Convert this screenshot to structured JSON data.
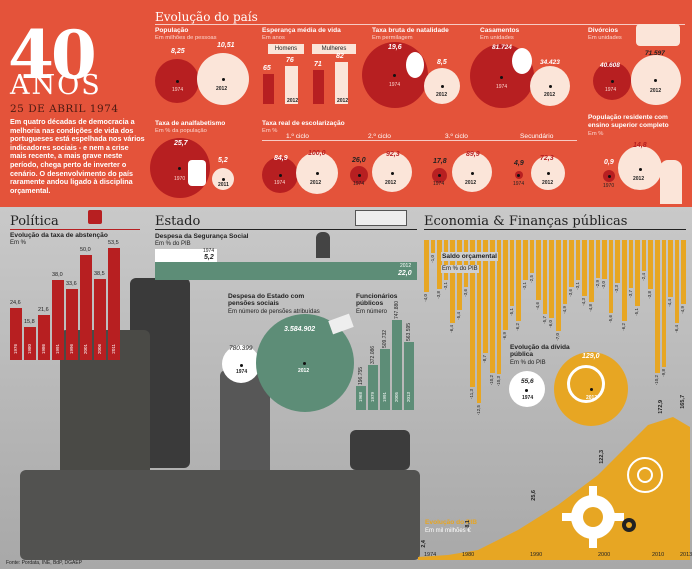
{
  "header": {
    "number": "40",
    "anos": "ANOS",
    "date": "25 DE ABRIL 1974",
    "intro": "Em quatro décadas de democracia a melhoria nas condições de vida dos portugueses está espelhada nos vários indicadores sociais - e nem a crise mais recente, a mais grave neste período, chega perto de inverter o cenário. O desenvolvimento do país raramente andou ligado à disciplina orçamental."
  },
  "evolucao": {
    "title": "Evolução do país"
  },
  "populacao": {
    "title": "População",
    "unit": "Em milhões de pessoas",
    "v1974": "8,25",
    "v2012": "10,51",
    "y1": "1974",
    "y2": "2012"
  },
  "esperanca": {
    "title": "Esperança média de vida",
    "unit": "Em anos",
    "homens": "Homens",
    "mulheres": "Mulheres",
    "h1974": "65",
    "h2012": "76",
    "m1974": "71",
    "m2012": "82",
    "y1": "1974",
    "y2": "2012"
  },
  "natalidade": {
    "title": "Taxa bruta de natalidade",
    "unit": "Em permilagem",
    "v1974": "19,6",
    "v2012": "8,5",
    "y1": "1974",
    "y2": "2012"
  },
  "casamentos": {
    "title": "Casamentos",
    "unit": "Em unidades",
    "v1974": "81.724",
    "v2012": "34.423",
    "y1": "1974",
    "y2": "2012"
  },
  "divorcios": {
    "title": "Divórcios",
    "unit": "Em unidades",
    "v1974": "40.608",
    "v2012": "71.597",
    "y1": "1974",
    "y2": "2012"
  },
  "analfabetismo": {
    "title": "Taxa de analfabetismo",
    "unit": "Em % da população",
    "v1974": "25,7",
    "v2011": "5,2",
    "y1": "1970",
    "y2": "2011"
  },
  "escolarizacao": {
    "title": "Taxa real de escolarização",
    "unit": "Em %",
    "ciclos": [
      {
        "label": "1.º ciclo",
        "v1": "84,9",
        "v2": "100,0",
        "y1": "1974",
        "y2": "2012"
      },
      {
        "label": "2.º ciclo",
        "v1": "26,0",
        "v2": "92,3",
        "y1": "1974",
        "y2": "2012"
      },
      {
        "label": "3.º ciclo",
        "v1": "17,8",
        "v2": "89,9",
        "y1": "1974",
        "y2": "2012"
      },
      {
        "label": "Secundário",
        "v1": "4,9",
        "v2": "72,3",
        "y1": "1974",
        "y2": "2012"
      }
    ]
  },
  "superior": {
    "title": "População residente com ensino superior completo",
    "unit": "Em %",
    "v1": "0,9",
    "v2": "14,8",
    "y1": "1970",
    "y2": "2012"
  },
  "politica": {
    "title": "Política",
    "sub": "Evolução da taxa de abstenção",
    "unit": "Em %",
    "bars": [
      {
        "y": "1976",
        "v": "24,6"
      },
      {
        "y": "1980",
        "v": "15,8"
      },
      {
        "y": "1986",
        "v": "21,6"
      },
      {
        "y": "1991",
        "v": "38,0"
      },
      {
        "y": "1996",
        "v": "33,6"
      },
      {
        "y": "2001",
        "v": "50,0"
      },
      {
        "y": "2006",
        "v": "38,5"
      },
      {
        "y": "2011",
        "v": "53,5"
      }
    ]
  },
  "estado": {
    "title": "Estado",
    "ss_title": "Despesa da Segurança Social",
    "ss_unit": "Em % do PIB",
    "ss_1974_y": "1974",
    "ss_1974_v": "5,2",
    "ss_2012_y": "2012",
    "ss_2012_v": "22,0",
    "pens_title": "Despesa do Estado com pensões sociais",
    "pens_unit": "Em número de pensões atribuídas",
    "pens_1974": "780.399",
    "pens_2012": "3.584.902",
    "pens_y1": "1974",
    "pens_y2": "2012",
    "func_title": "Funcionários públicos",
    "func_unit": "Em número",
    "func": [
      {
        "y": "1968",
        "v": "196.755"
      },
      {
        "y": "1979",
        "v": "372.086"
      },
      {
        "y": "1991",
        "v": "509.732"
      },
      {
        "y": "2005",
        "v": "747.880"
      },
      {
        "y": "2013",
        "v": "563.595"
      }
    ]
  },
  "economia": {
    "title": "Economia & Finanças públicas",
    "saldo_title": "Saldo orçamental",
    "saldo_unit": "Em % do PIB",
    "saldo": [
      "-4,0",
      "-1,0",
      "-3,8",
      "-3,1",
      "-6,4",
      "-5,4",
      "-3,6",
      "-11,3",
      "-12,5",
      "-8,7",
      "-10,2",
      "-10,3",
      "-6,9",
      "-5,1",
      "-6,2",
      "-3,1",
      "-2,5",
      "-4,6",
      "-5,7",
      "-6,0",
      "-7,0",
      "-4,9",
      "-3,6",
      "-3,1",
      "-4,3",
      "-4,8",
      "-2,9",
      "-3,0",
      "-5,6",
      "-3,3",
      "-6,2",
      "-3,7",
      "-5,1",
      "-2,4",
      "-3,8",
      "-10,2",
      "-9,8",
      "-4,4",
      "-6,4",
      "-4,9"
    ],
    "divida_title": "Evolução da dívida pública",
    "divida_unit": "Em % do PIB",
    "divida_1974": "55,6",
    "divida_2012": "129,0",
    "divida_y1": "1974",
    "divida_y2": "2012",
    "pib_title": "Evolução do PIB",
    "pib_unit": "Em mil milhões €",
    "pib_labels": [
      {
        "v": "2,4"
      },
      {
        "v": "8,1"
      },
      {
        "v": "25,6"
      },
      {
        "v": "122,3"
      },
      {
        "v": "172,9"
      },
      {
        "v": "165,7"
      }
    ],
    "years": [
      "1974",
      "1980",
      "1990",
      "2000",
      "2010",
      "2013"
    ]
  },
  "fonte": "Fonte: Pordata, INE, BdP, DGAEP",
  "colors": {
    "orange": "#e4533a",
    "red": "#b71f21",
    "pale": "#fbe5d9",
    "gold": "#e7a623",
    "teal": "#5d8d77"
  }
}
